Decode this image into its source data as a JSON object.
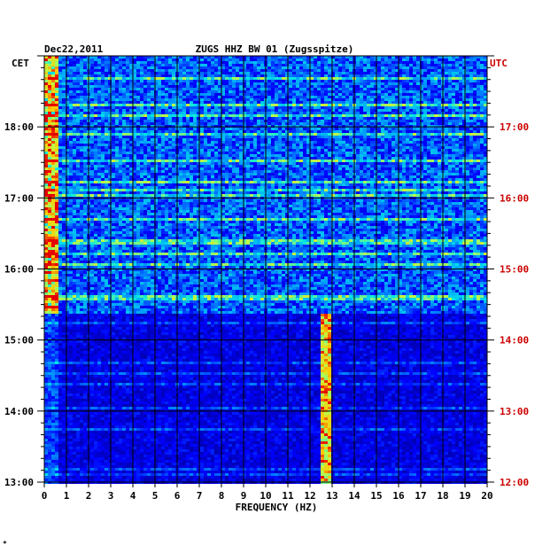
{
  "chart_data": {
    "type": "heatmap",
    "title_left": "Dec22,2011",
    "title_center": "ZUGS HHZ BW 01 (Zugsspitze)",
    "left_axis_label": "CET",
    "right_axis_label": "UTC",
    "xlabel": "FREQUENCY (HZ)",
    "xlim": [
      0,
      20
    ],
    "x_ticks": [
      "0",
      "1",
      "2",
      "3",
      "4",
      "5",
      "6",
      "7",
      "8",
      "9",
      "10",
      "11",
      "12",
      "13",
      "14",
      "15",
      "16",
      "17",
      "18",
      "19",
      "20"
    ],
    "cet_ticks": [
      {
        "label": "13:00",
        "hour": 13
      },
      {
        "label": "14:00",
        "hour": 14
      },
      {
        "label": "15:00",
        "hour": 15
      },
      {
        "label": "16:00",
        "hour": 16
      },
      {
        "label": "17:00",
        "hour": 17
      },
      {
        "label": "18:00",
        "hour": 18
      }
    ],
    "utc_ticks": [
      {
        "label": "12:00",
        "hour": 13
      },
      {
        "label": "13:00",
        "hour": 14
      },
      {
        "label": "14:00",
        "hour": 15
      },
      {
        "label": "15:00",
        "hour": 16
      },
      {
        "label": "16:00",
        "hour": 17
      },
      {
        "label": "17:00",
        "hour": 18
      }
    ],
    "ylim_cet_hours": [
      13,
      19
    ],
    "grid": true,
    "quiet_period_cet": [
      15.0,
      15.4
    ],
    "strong_band_hz": [
      12.5,
      13.0
    ],
    "strong_band_cet": [
      13.0,
      15.4
    ],
    "low_freq_band_hz": [
      0,
      0.6
    ],
    "colors": {
      "background": "#0000a0",
      "grid": "#000000",
      "left_labels": "#000000",
      "right_labels": "#cc0000"
    }
  },
  "footnote": "*"
}
